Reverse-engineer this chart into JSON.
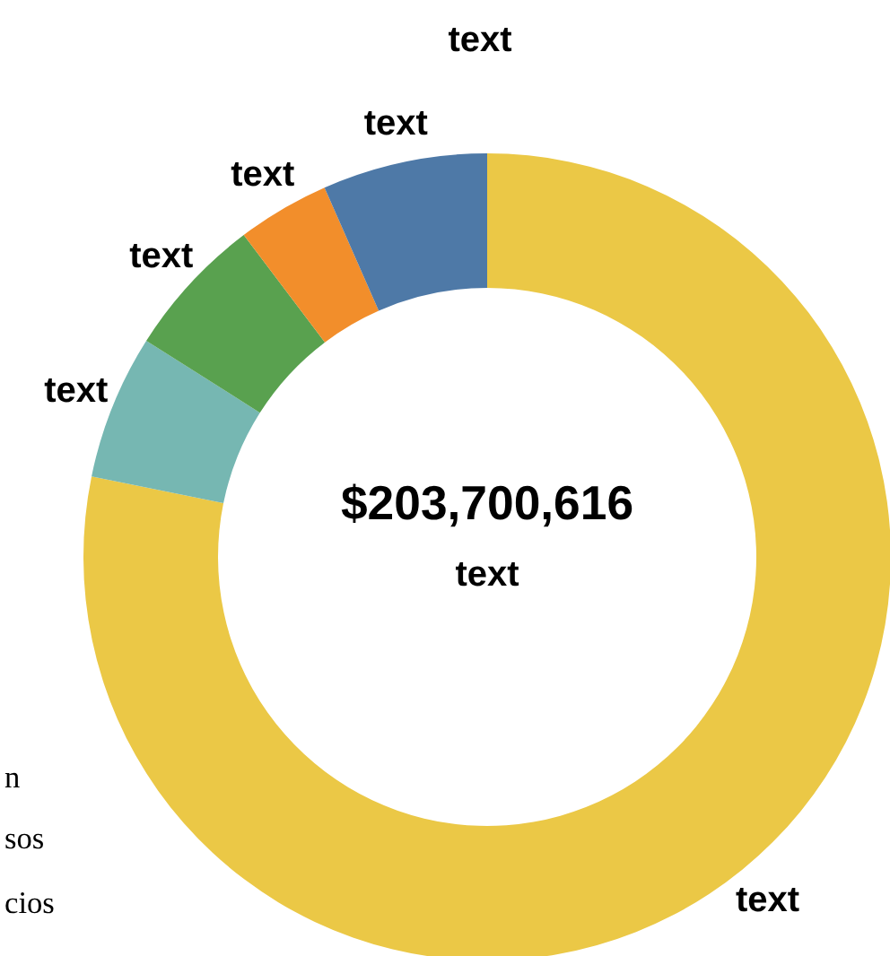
{
  "chart_data": {
    "type": "donut",
    "categories": [
      "text",
      "text",
      "text",
      "text",
      "text"
    ],
    "values": [
      78.2,
      5.8,
      5.7,
      3.7,
      6.6
    ],
    "colors": [
      "#ebc846",
      "#76b7b2",
      "#59a14f",
      "#f28e2b",
      "#4e79a7"
    ],
    "annotations": [
      "$203,700,616",
      "text",
      "text",
      "n",
      "sos",
      "cios"
    ]
  }
}
